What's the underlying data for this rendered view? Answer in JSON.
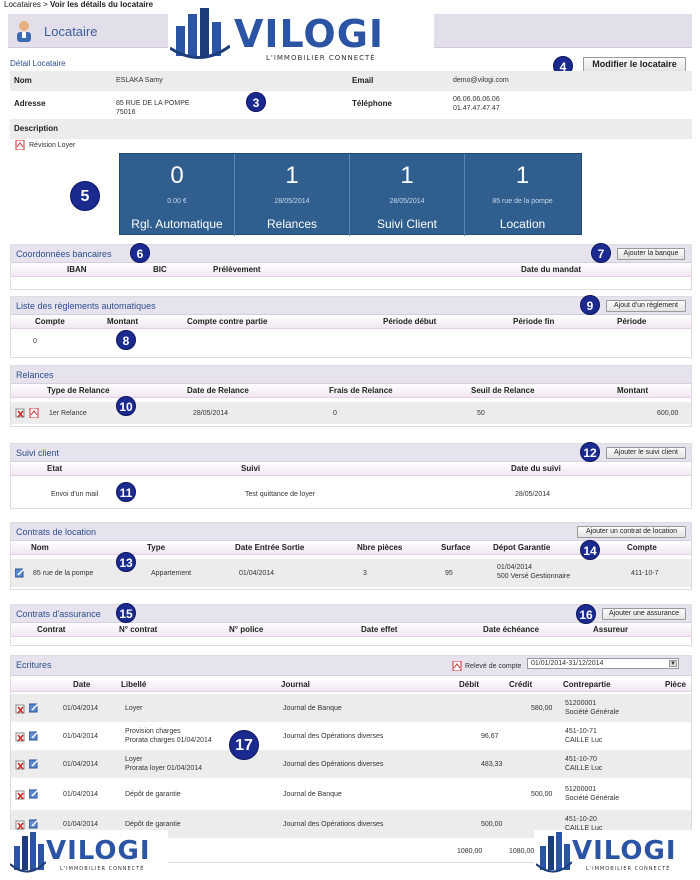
{
  "breadcrumb": {
    "root": "Locataires",
    "sep": " > ",
    "current": "Voir les détails du locataire"
  },
  "page": {
    "title": "Locataire"
  },
  "detail": {
    "title": "Détail Locataire",
    "edit_button": "Modifier le locataire",
    "nom_label": "Nom",
    "nom_value": "ESLAKA Samy",
    "email_label": "Email",
    "email_value": "demo@vilogi.com",
    "adresse_label": "Adresse",
    "adresse_line1": "85 RUE DE LA POMPE",
    "adresse_line2": "75016",
    "tel_label": "Téléphone",
    "tel_line1": "06.06.06.06.06",
    "tel_line2": "01.47.47.47.47",
    "description_label": "Description",
    "revision_link": "Révision Loyer"
  },
  "tiles": [
    {
      "value": "0",
      "sub": "0.00 €",
      "label": "Rgl. Automatique"
    },
    {
      "value": "1",
      "sub": "28/05/2014",
      "label": "Relances"
    },
    {
      "value": "1",
      "sub": "28/05/2014",
      "label": "Suivi Client"
    },
    {
      "value": "1",
      "sub": "85 rue de la pompe",
      "label": "Location"
    }
  ],
  "bank": {
    "title": "Coordonnées bancaires",
    "button": "Ajouter la banque",
    "columns": [
      "IBAN",
      "BIC",
      "Prélèvement",
      "Date du mandat"
    ]
  },
  "reglements": {
    "title": "Liste des règlements automatiques",
    "button": "Ajout d'un règlement",
    "columns": [
      "Compte",
      "Montant",
      "Compte contre partie",
      "Période début",
      "Période fin",
      "Période"
    ],
    "row": [
      "0"
    ]
  },
  "relances": {
    "title": "Relances",
    "columns": [
      "Type de Relance",
      "Date de Relance",
      "Frais de Relance",
      "Seuil de Relance",
      "Montant"
    ],
    "row": [
      "1er Relance",
      "28/05/2014",
      "0",
      "50",
      "600,00"
    ]
  },
  "suivi": {
    "title": "Suivi client",
    "button": "Ajouter le suivi client",
    "columns": [
      "Etat",
      "Suivi",
      "Date du suivi"
    ],
    "row": [
      "Envoi d'un mail",
      "Test quittance de loyer",
      "28/05/2014"
    ]
  },
  "contrats": {
    "title": "Contrats de location",
    "button": "Ajouter un contrat de location",
    "columns": [
      "Nom",
      "Type",
      "Date Entrée Sortie",
      "Nbre pièces",
      "Surface",
      "Dépot Garantie",
      "Compte"
    ],
    "row": {
      "nom": "85 rue de la pompe",
      "type": "Appartement",
      "date": "01/04/2014",
      "pieces": "3",
      "surface": "95",
      "depot1": "01/04/2014",
      "depot2": "500 Versé Gestionnaire",
      "compte": "411-10-7"
    }
  },
  "assurance": {
    "title": "Contrats d'assurance",
    "button": "Ajouter une assurance",
    "columns": [
      "Contrat",
      "N° contrat",
      "N° police",
      "Date effet",
      "Date échéance",
      "Assureur"
    ]
  },
  "ecritures": {
    "title": "Ecritures",
    "releve_link": "Relevé de compte",
    "period": "01/01/2014-31/12/2014",
    "columns": [
      "Date",
      "Libellé",
      "Journal",
      "Débit",
      "Crédit",
      "Contrepartie",
      "Pièce"
    ],
    "rows": [
      {
        "date": "01/04/2014",
        "lib1": "Loyer",
        "lib2": "",
        "journal": "Journal de Banque",
        "debit": "",
        "credit": "580,00",
        "cp1": "51200001",
        "cp2": "Société Générale"
      },
      {
        "date": "01/04/2014",
        "lib1": "Provision charges",
        "lib2": "Prorata charges 01/04/2014",
        "journal": "Journal des Opérations diverses",
        "debit": "96,67",
        "credit": "",
        "cp1": "451-10-71",
        "cp2": "CAILLE Luc"
      },
      {
        "date": "01/04/2014",
        "lib1": "Loyer",
        "lib2": "Prorata loyer 01/04/2014",
        "journal": "Journal des Opérations diverses",
        "debit": "483,33",
        "credit": "",
        "cp1": "451-10-70",
        "cp2": "CAILLE Luc"
      },
      {
        "date": "01/04/2014",
        "lib1": "Dépôt de garantie",
        "lib2": "",
        "journal": "Journal de Banque",
        "debit": "",
        "credit": "500,00",
        "cp1": "51200001",
        "cp2": "Société Générale"
      },
      {
        "date": "01/04/2014",
        "lib1": "Dépôt de garantie",
        "lib2": "",
        "journal": "Journal des Opérations diverses",
        "debit": "500,00",
        "credit": "",
        "cp1": "451-10-20",
        "cp2": "CAILLE Luc"
      }
    ],
    "total_debit": "1080,00",
    "total_credit": "1080,00"
  },
  "logo": {
    "name": "VILOGI",
    "tagline": "L'IMMOBILIER CONNECTÉ"
  },
  "markers": [
    "3",
    "4",
    "5",
    "6",
    "7",
    "8",
    "9",
    "10",
    "11",
    "12",
    "13",
    "14",
    "15",
    "16",
    "17"
  ],
  "colors": {
    "accent": "#2b4f8e",
    "tile_bg": "#2f5e8f",
    "marker": "#1b2a8f",
    "header_bg": "#e7e3ee"
  }
}
